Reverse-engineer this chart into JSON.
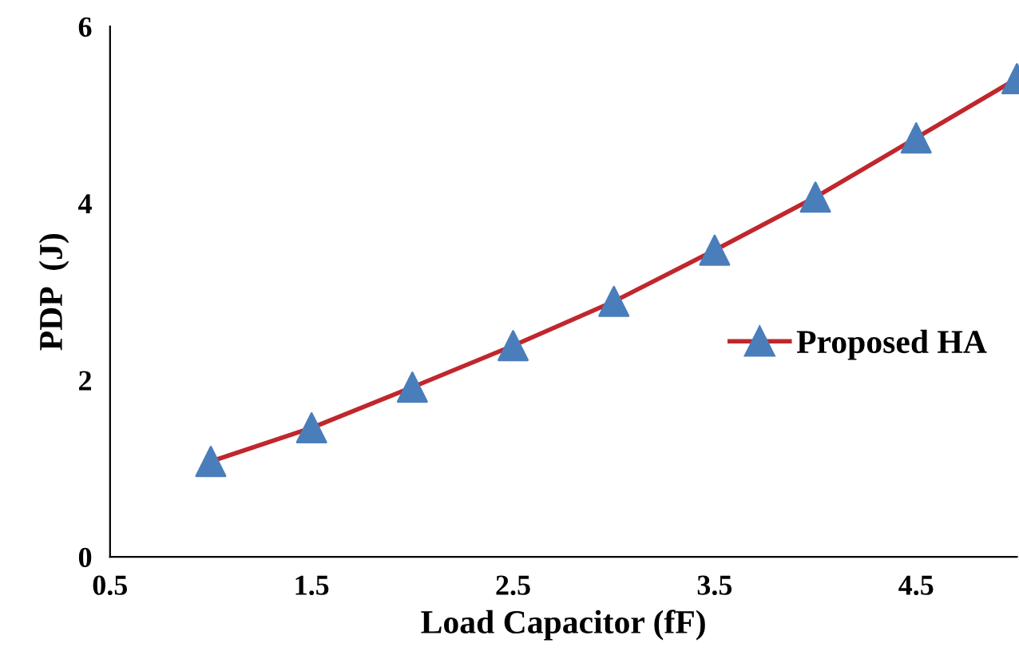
{
  "chart_data": {
    "type": "line",
    "xlabel": "Load Capacitor (fF)",
    "ylabel": "PDP  (J)",
    "x": [
      1,
      1.5,
      2,
      2.5,
      3,
      3.5,
      4,
      4.5,
      5
    ],
    "series": [
      {
        "name": "Proposed HA",
        "color": "#c0272d",
        "colors": [
          "#4a7ebb",
          "#4a7ebb",
          "#4a7ebb",
          "#4a7ebb",
          "#4a7ebb",
          "#4a7ebb",
          "#4a7ebb",
          "#4a7ebb",
          "#4a7ebb"
        ],
        "values": [
          1.08,
          1.46,
          1.92,
          2.39,
          2.89,
          3.47,
          4.07,
          4.74,
          5.41
        ]
      }
    ],
    "xlim": [
      0.5,
      5
    ],
    "xticks": [
      0.5,
      1.5,
      2.5,
      3.5,
      4.5
    ],
    "ylim": [
      0,
      6
    ],
    "yticks": [
      0,
      2,
      4,
      6
    ],
    "marker": "triangle",
    "line_style": "solid",
    "legend": "right",
    "grid": false
  }
}
